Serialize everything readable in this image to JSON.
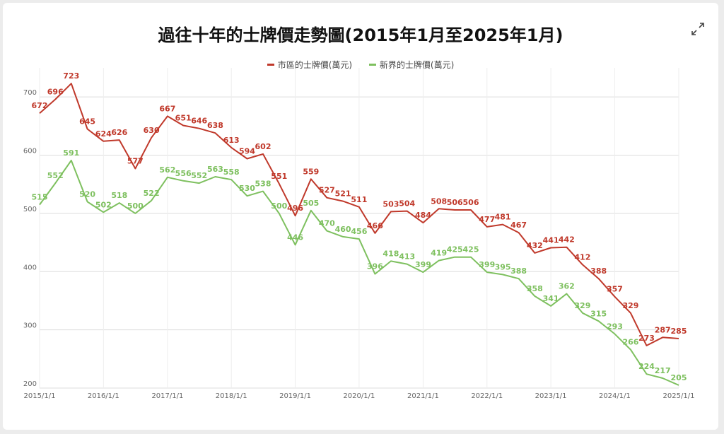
{
  "window": {
    "expand_icon": "expand-arrows-icon"
  },
  "colors": {
    "urban": "#c0392b",
    "nt": "#7ec05f",
    "grid": "#dddddd",
    "title": "#111111"
  },
  "chart_data": {
    "type": "line",
    "title": "過往十年的士牌價走勢圖(2015年1月至2025年1月)",
    "xlabel": "",
    "ylabel": "",
    "ylim": [
      200,
      750
    ],
    "yticks": [
      200,
      300,
      400,
      500,
      600,
      700
    ],
    "xticks": [
      "2015/1/1",
      "2016/1/1",
      "2017/1/1",
      "2018/1/1",
      "2019/1/1",
      "2020/1/1",
      "2021/1/1",
      "2022/1/1",
      "2023/1/1",
      "2024/1/1",
      "2025/1/1"
    ],
    "legend_position": "top-center",
    "grid": true,
    "x_start": "2015/1/1",
    "x_end": "2025/1/1",
    "series": [
      {
        "name": "市區的士牌價(萬元)",
        "color": "#c0392b",
        "points": [
          {
            "x": "2015/1/1",
            "y": 672
          },
          {
            "x": "2015/4/1",
            "y": 696
          },
          {
            "x": "2015/7/1",
            "y": 723
          },
          {
            "x": "2015/10/1",
            "y": 645
          },
          {
            "x": "2016/1/1",
            "y": 624
          },
          {
            "x": "2016/4/1",
            "y": 626
          },
          {
            "x": "2016/7/1",
            "y": 577
          },
          {
            "x": "2016/10/1",
            "y": 630
          },
          {
            "x": "2017/1/1",
            "y": 667
          },
          {
            "x": "2017/4/1",
            "y": 651
          },
          {
            "x": "2017/7/1",
            "y": 646
          },
          {
            "x": "2017/10/1",
            "y": 638
          },
          {
            "x": "2018/1/1",
            "y": 613
          },
          {
            "x": "2018/4/1",
            "y": 594
          },
          {
            "x": "2018/7/1",
            "y": 602
          },
          {
            "x": "2018/10/1",
            "y": 551
          },
          {
            "x": "2019/1/1",
            "y": 496
          },
          {
            "x": "2019/4/1",
            "y": 559
          },
          {
            "x": "2019/7/1",
            "y": 527
          },
          {
            "x": "2019/10/1",
            "y": 521
          },
          {
            "x": "2020/1/1",
            "y": 511
          },
          {
            "x": "2020/4/1",
            "y": 466
          },
          {
            "x": "2020/7/1",
            "y": 503
          },
          {
            "x": "2020/10/1",
            "y": 504
          },
          {
            "x": "2021/1/1",
            "y": 484
          },
          {
            "x": "2021/4/1",
            "y": 508
          },
          {
            "x": "2021/7/1",
            "y": 506
          },
          {
            "x": "2021/10/1",
            "y": 506
          },
          {
            "x": "2022/1/1",
            "y": 477
          },
          {
            "x": "2022/4/1",
            "y": 481
          },
          {
            "x": "2022/7/1",
            "y": 467
          },
          {
            "x": "2022/10/1",
            "y": 432
          },
          {
            "x": "2023/1/1",
            "y": 441
          },
          {
            "x": "2023/4/1",
            "y": 442
          },
          {
            "x": "2023/7/1",
            "y": 412
          },
          {
            "x": "2023/10/1",
            "y": 388
          },
          {
            "x": "2024/1/1",
            "y": 357
          },
          {
            "x": "2024/4/1",
            "y": 329
          },
          {
            "x": "2024/7/1",
            "y": 273
          },
          {
            "x": "2024/10/1",
            "y": 287
          },
          {
            "x": "2025/1/1",
            "y": 285
          }
        ]
      },
      {
        "name": "新界的士牌價(萬元)",
        "color": "#7ec05f",
        "points": [
          {
            "x": "2015/1/1",
            "y": 515
          },
          {
            "x": "2015/4/1",
            "y": 552
          },
          {
            "x": "2015/7/1",
            "y": 591
          },
          {
            "x": "2015/10/1",
            "y": 520
          },
          {
            "x": "2016/1/1",
            "y": 502
          },
          {
            "x": "2016/4/1",
            "y": 518
          },
          {
            "x": "2016/7/1",
            "y": 500
          },
          {
            "x": "2016/10/1",
            "y": 522
          },
          {
            "x": "2017/1/1",
            "y": 562
          },
          {
            "x": "2017/4/1",
            "y": 556
          },
          {
            "x": "2017/7/1",
            "y": 552
          },
          {
            "x": "2017/10/1",
            "y": 563
          },
          {
            "x": "2018/1/1",
            "y": 558
          },
          {
            "x": "2018/4/1",
            "y": 530
          },
          {
            "x": "2018/7/1",
            "y": 538
          },
          {
            "x": "2018/10/1",
            "y": 500
          },
          {
            "x": "2019/1/1",
            "y": 446
          },
          {
            "x": "2019/4/1",
            "y": 505
          },
          {
            "x": "2019/7/1",
            "y": 470
          },
          {
            "x": "2019/10/1",
            "y": 460
          },
          {
            "x": "2020/1/1",
            "y": 456
          },
          {
            "x": "2020/4/1",
            "y": 396
          },
          {
            "x": "2020/7/1",
            "y": 418
          },
          {
            "x": "2020/10/1",
            "y": 413
          },
          {
            "x": "2021/1/1",
            "y": 399
          },
          {
            "x": "2021/4/1",
            "y": 419
          },
          {
            "x": "2021/7/1",
            "y": 425
          },
          {
            "x": "2021/10/1",
            "y": 425
          },
          {
            "x": "2022/1/1",
            "y": 399
          },
          {
            "x": "2022/4/1",
            "y": 395
          },
          {
            "x": "2022/7/1",
            "y": 388
          },
          {
            "x": "2022/10/1",
            "y": 358
          },
          {
            "x": "2023/1/1",
            "y": 341
          },
          {
            "x": "2023/4/1",
            "y": 362
          },
          {
            "x": "2023/7/1",
            "y": 329
          },
          {
            "x": "2023/10/1",
            "y": 315
          },
          {
            "x": "2024/1/1",
            "y": 293
          },
          {
            "x": "2024/4/1",
            "y": 266
          },
          {
            "x": "2024/7/1",
            "y": 224
          },
          {
            "x": "2024/10/1",
            "y": 217
          },
          {
            "x": "2025/1/1",
            "y": 205
          }
        ]
      }
    ]
  }
}
